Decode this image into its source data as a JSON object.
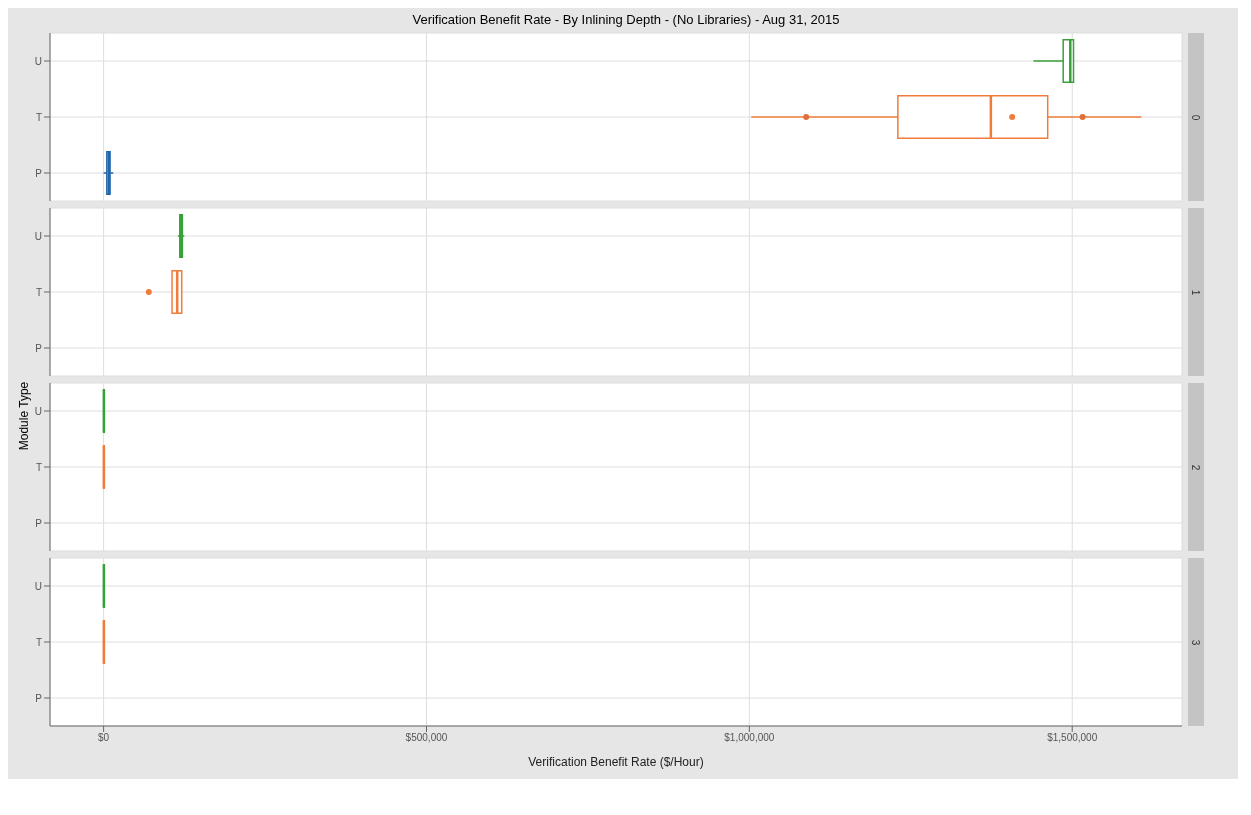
{
  "chart_data": [
    {
      "type": "box",
      "orientation": "horizontal",
      "title": "Verification Benefit Rate - By Inlining Depth - (No Libraries) - Aug 31, 2015",
      "annotations": [
        "0"
      ],
      "categories": [
        "U",
        "T",
        "P"
      ],
      "xlim": [
        -83000,
        1670000
      ],
      "xticks": [
        0,
        500000,
        1000000,
        1500000
      ],
      "tick_labels": "y",
      "grid": true,
      "series": [
        {
          "type": "box",
          "color": "#3aa03a",
          "boxes": [
            {
              "low": 1440000,
              "q1": 1486000,
              "median": 1497000,
              "q3": 1502000,
              "high": 1502000
            },
            null,
            null
          ]
        },
        {
          "type": "box",
          "color": "#f07c3c",
          "boxes": [
            null,
            {
              "low": 1003000,
              "q1": 1230000,
              "median": 1374000,
              "q3": 1462000,
              "high": 1607000,
              "mean": 1407000
            },
            null
          ]
        },
        {
          "type": "box",
          "color": "#2166ac",
          "boxes": [
            null,
            null,
            {
              "low": 0,
              "q1": 5000,
              "median": 8000,
              "q3": 10000,
              "high": 15000
            }
          ]
        },
        {
          "type": "scatter",
          "color": "#e0703a",
          "x": [
            "T",
            "T"
          ],
          "values": [
            1088000,
            1516000
          ]
        }
      ]
    },
    {
      "type": "box",
      "orientation": "horizontal",
      "annotations": [
        "1"
      ],
      "ylabel": "Module Type",
      "categories": [
        "U",
        "T",
        "P"
      ],
      "xlim": [
        -83000,
        1670000
      ],
      "xticks": [
        0,
        500000,
        1000000,
        1500000
      ],
      "tick_labels": "y",
      "grid": true,
      "series": [
        {
          "type": "box",
          "color": "#3aa03a",
          "boxes": [
            {
              "low": 115000,
              "q1": 118000,
              "median": 120000,
              "q3": 122000,
              "high": 125000
            },
            null,
            null
          ]
        },
        {
          "type": "box",
          "color": "#f07c3c",
          "boxes": [
            null,
            {
              "low": 106000,
              "q1": 106000,
              "median": 114000,
              "q3": 121000,
              "high": 121000,
              "outliers": [
                70000
              ]
            },
            null
          ]
        }
      ]
    },
    {
      "type": "box",
      "orientation": "horizontal",
      "annotations": [
        "2"
      ],
      "categories": [
        "U",
        "T",
        "P"
      ],
      "xlim": [
        -83000,
        1670000
      ],
      "xticks": [
        0,
        500000,
        1000000,
        1500000
      ],
      "tick_labels": "y",
      "grid": true,
      "series": [
        {
          "type": "box",
          "color": "#3aa03a",
          "boxes": [
            {
              "low": 0,
              "q1": 0,
              "median": 500,
              "q3": 1000,
              "high": 1500
            },
            null,
            null
          ]
        },
        {
          "type": "box",
          "color": "#f07c3c",
          "boxes": [
            null,
            {
              "low": 0,
              "q1": 0,
              "median": 500,
              "q3": 1000,
              "high": 1500
            },
            null
          ]
        }
      ]
    },
    {
      "type": "box",
      "orientation": "horizontal",
      "annotations": [
        "3"
      ],
      "xlabel": "Verification Benefit Rate ($/Hour)",
      "categories": [
        "U",
        "T",
        "P"
      ],
      "xlim": [
        -83000,
        1670000
      ],
      "xticks": [
        {
          "value": 0,
          "label": "$0"
        },
        {
          "value": 500000,
          "label": "$500,000"
        },
        {
          "value": 1000000,
          "label": "$1,000,000"
        },
        {
          "value": 1500000,
          "label": "$1,500,000"
        }
      ],
      "grid": true,
      "series": [
        {
          "type": "box",
          "color": "#3aa03a",
          "boxes": [
            {
              "low": 0,
              "q1": 0,
              "median": 500,
              "q3": 1000,
              "high": 1500
            },
            null,
            null
          ]
        },
        {
          "type": "box",
          "color": "#f07c3c",
          "boxes": [
            null,
            {
              "low": 0,
              "q1": 0,
              "median": 500,
              "q3": 1000,
              "high": 1500
            },
            null
          ]
        }
      ]
    }
  ]
}
